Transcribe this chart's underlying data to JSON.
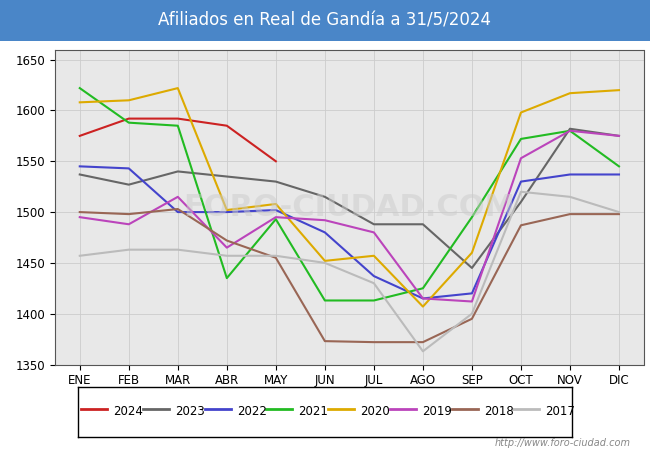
{
  "title": "Afiliados en Real de Gandía a 31/5/2024",
  "title_color": "white",
  "title_bg_color": "#4a86c8",
  "ylim": [
    1350,
    1660
  ],
  "yticks": [
    1350,
    1400,
    1450,
    1500,
    1550,
    1600,
    1650
  ],
  "months": [
    "ENE",
    "FEB",
    "MAR",
    "ABR",
    "MAY",
    "JUN",
    "JUL",
    "AGO",
    "SEP",
    "OCT",
    "NOV",
    "DIC"
  ],
  "watermark": "http://www.foro-ciudad.com",
  "year_order": [
    "2024",
    "2023",
    "2022",
    "2021",
    "2020",
    "2019",
    "2018",
    "2017"
  ],
  "series": {
    "2024": {
      "color": "#cc2222",
      "data": [
        1575,
        1592,
        1592,
        1585,
        1550,
        null,
        null,
        null,
        null,
        null,
        null,
        null
      ]
    },
    "2023": {
      "color": "#666666",
      "data": [
        1537,
        1527,
        1540,
        1535,
        1530,
        1515,
        1488,
        1488,
        1445,
        1510,
        1582,
        1575
      ]
    },
    "2022": {
      "color": "#4444cc",
      "data": [
        1545,
        1543,
        1500,
        1500,
        1502,
        1480,
        1437,
        1415,
        1420,
        1530,
        1537,
        1537
      ]
    },
    "2021": {
      "color": "#22bb22",
      "data": [
        1622,
        1588,
        1585,
        1435,
        1493,
        1413,
        1413,
        1425,
        1495,
        1572,
        1580,
        1545
      ]
    },
    "2020": {
      "color": "#ddaa00",
      "data": [
        1608,
        1610,
        1622,
        1502,
        1508,
        1452,
        1457,
        1407,
        1460,
        1598,
        1617,
        1620
      ]
    },
    "2019": {
      "color": "#bb44bb",
      "data": [
        1495,
        1488,
        1515,
        1465,
        1495,
        1492,
        1480,
        1415,
        1412,
        1553,
        1580,
        1575
      ]
    },
    "2018": {
      "color": "#996655",
      "data": [
        1500,
        1498,
        1503,
        1472,
        1455,
        1373,
        1372,
        1372,
        1395,
        1487,
        1498,
        1498
      ]
    },
    "2017": {
      "color": "#bbbbbb",
      "data": [
        1457,
        1463,
        1463,
        1457,
        1457,
        1450,
        1430,
        1363,
        1400,
        1520,
        1515,
        1500
      ]
    }
  }
}
